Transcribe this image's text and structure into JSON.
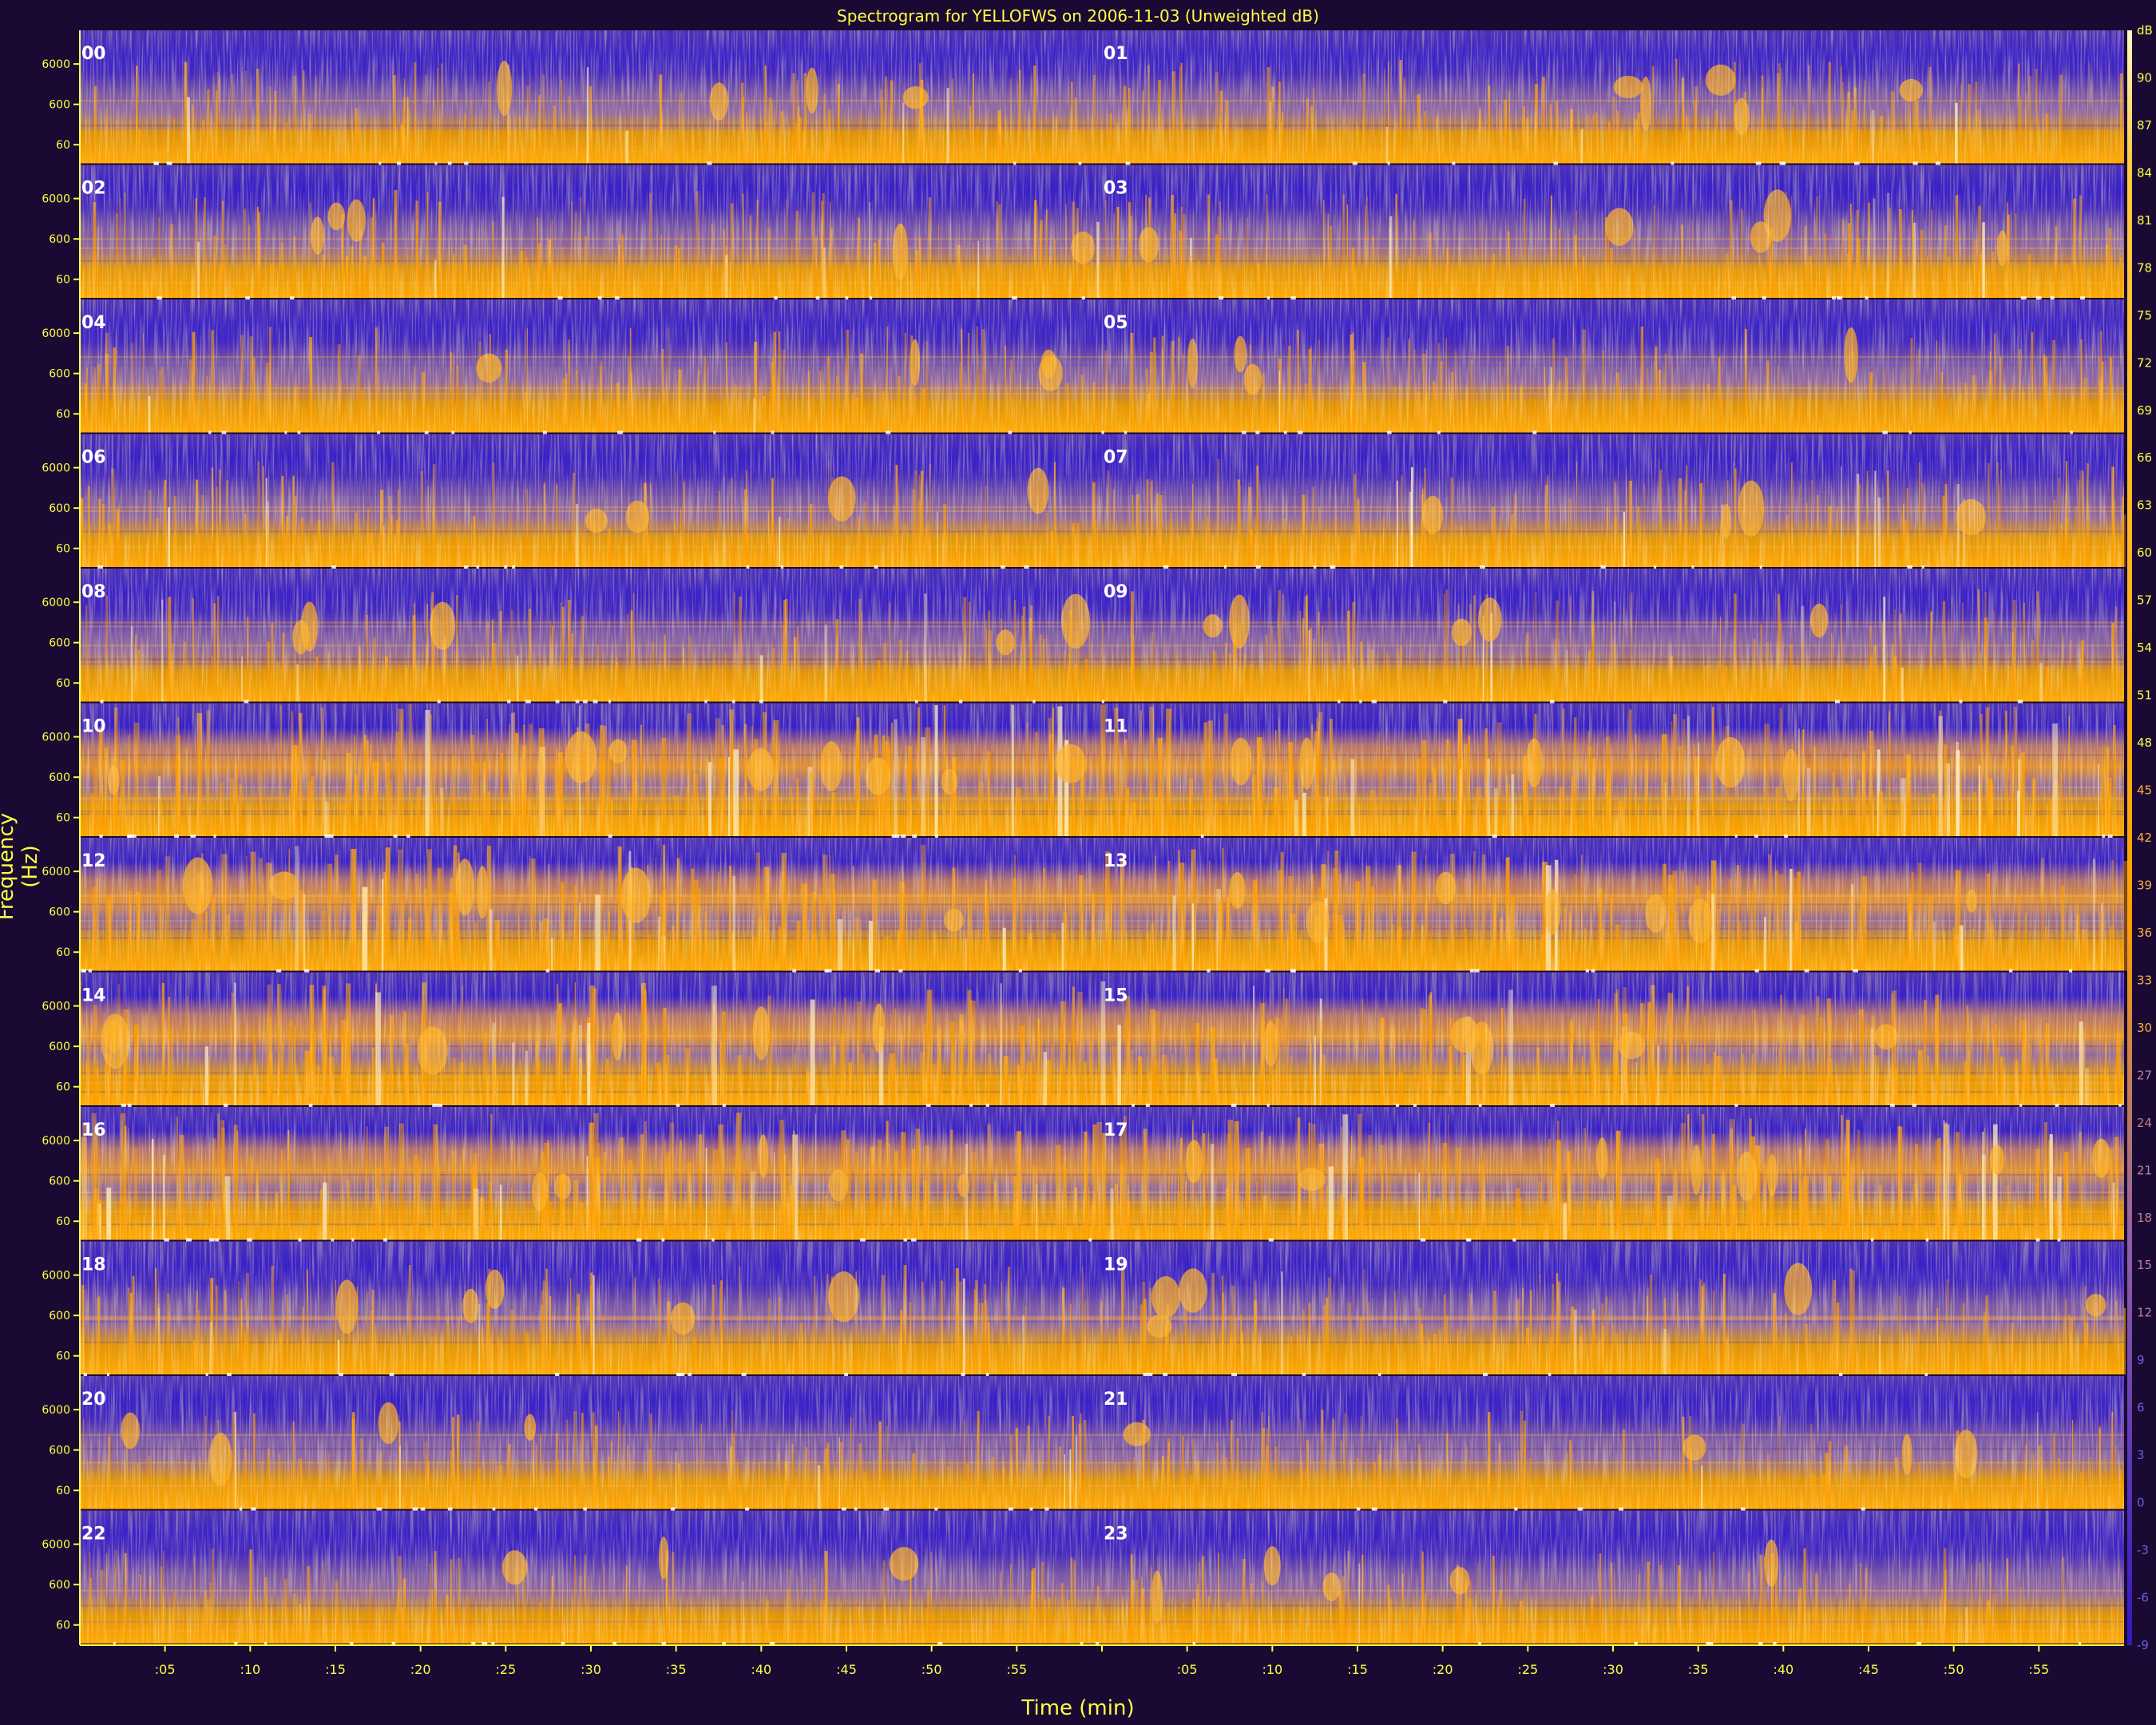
{
  "chart_data": {
    "type": "heatmap",
    "title": "Spectrogram for YELLOFWS on 2006-11-03 (Unweighted dB)",
    "xlabel": "Time (min)",
    "ylabel": "Frequency (Hz)",
    "freq_ticks": [
      "6000",
      "600",
      "60"
    ],
    "x_ticks": [
      ":05",
      ":10",
      ":15",
      ":20",
      ":25",
      ":30",
      ":35",
      ":40",
      ":45",
      ":50",
      ":55"
    ],
    "hour_labels": [
      "00",
      "01",
      "02",
      "03",
      "04",
      "05",
      "06",
      "07",
      "08",
      "09",
      "10",
      "11",
      "12",
      "13",
      "14",
      "15",
      "16",
      "17",
      "18",
      "19",
      "20",
      "21",
      "22",
      "23"
    ],
    "colorbar": {
      "ticks": [
        "dB",
        "90",
        "87",
        "84",
        "81",
        "78",
        "75",
        "72",
        "69",
        "66",
        "63",
        "60",
        "57",
        "54",
        "51",
        "48",
        "45",
        "42",
        "39",
        "36",
        "33",
        "30",
        "27",
        "24",
        "21",
        "18",
        "15",
        "12",
        "9",
        "6",
        "3",
        "0",
        "-3",
        "-6",
        "-9"
      ],
      "range": [
        -9,
        93
      ]
    },
    "activity": [
      0.45,
      0.5,
      0.55,
      0.5,
      0.5,
      0.5,
      0.5,
      0.55,
      0.55,
      0.6,
      0.9,
      0.85,
      0.8,
      0.75,
      0.78,
      0.72,
      0.82,
      0.8,
      0.55,
      0.5,
      0.4,
      0.4,
      0.35,
      0.35
    ],
    "colors": {
      "background": "#1a0a33",
      "low": "#3820c8",
      "mid": "#8060a0",
      "high": "#ffa000",
      "peak": "#fff0c0",
      "axis": "#ffff44"
    }
  }
}
